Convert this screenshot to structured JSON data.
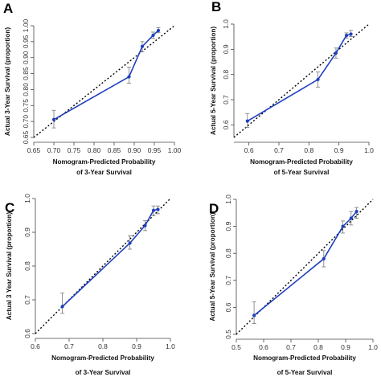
{
  "chart_data": [
    {
      "panel": "A",
      "type": "line",
      "xlabel": [
        "Nomogram-Predicted Probability",
        "of 3-Year Survival"
      ],
      "ylabel": "Actual 3-Year Survival  (proportion)",
      "xlim": [
        0.65,
        1.0
      ],
      "ylim": [
        0.65,
        1.0
      ],
      "xticks": [
        "0.65",
        "0.70",
        "0.75",
        "0.80",
        "0.85",
        "0.90",
        "0.95",
        "1.00"
      ],
      "yticks": [
        "0.65",
        "0.70",
        "0.75",
        "0.80",
        "0.85",
        "0.90",
        "0.95",
        "1.00"
      ],
      "x": [
        0.7,
        0.887,
        0.92,
        0.947,
        0.96
      ],
      "y": [
        0.706,
        0.84,
        0.935,
        0.97,
        0.985
      ],
      "err_low": [
        0.68,
        0.82,
        0.918,
        0.96,
        0.978
      ],
      "err_high": [
        0.735,
        0.87,
        0.95,
        0.98,
        0.994
      ],
      "line_color": "#1f3fbf",
      "diag_color": "#000000"
    },
    {
      "panel": "B",
      "type": "line",
      "xlabel": [
        "Nomogram-Predicted Probability",
        "of 5-Year Survival"
      ],
      "ylabel": "Actual 5-Year Survival  (proportion)",
      "xlim": [
        0.55,
        1.0
      ],
      "ylim": [
        0.55,
        1.0
      ],
      "xticks": [
        "0.6",
        "0.7",
        "0.8",
        "0.9",
        "1.0"
      ],
      "yticks": [
        "0.6",
        "0.7",
        "0.8",
        "0.9",
        "1.0"
      ],
      "x": [
        0.595,
        0.83,
        0.89,
        0.925,
        0.94
      ],
      "y": [
        0.615,
        0.78,
        0.885,
        0.955,
        0.96
      ],
      "err_low": [
        0.59,
        0.75,
        0.865,
        0.945,
        0.95
      ],
      "err_high": [
        0.645,
        0.81,
        0.905,
        0.965,
        0.975
      ],
      "line_color": "#1f3fbf",
      "diag_color": "#000000"
    },
    {
      "panel": "C",
      "type": "line",
      "xlabel": [
        "Nomogram-Predicted Probability",
        "of 3-Year Survival"
      ],
      "ylabel": "Actual 3 Year Survival  (proportion)",
      "xlim": [
        0.6,
        1.0
      ],
      "ylim": [
        0.6,
        1.0
      ],
      "xticks": [
        "0.6",
        "0.7",
        "0.8",
        "0.9",
        "1.0"
      ],
      "yticks": [
        "0.6",
        "0.7",
        "0.8",
        "0.9",
        "1.0"
      ],
      "x": [
        0.68,
        0.88,
        0.925,
        0.95,
        0.963
      ],
      "y": [
        0.68,
        0.868,
        0.92,
        0.965,
        0.968
      ],
      "err_low": [
        0.66,
        0.85,
        0.905,
        0.95,
        0.955
      ],
      "err_high": [
        0.72,
        0.89,
        0.935,
        0.978,
        0.978
      ],
      "line_color": "#1f3fbf",
      "diag_color": "#000000"
    },
    {
      "panel": "D",
      "type": "line",
      "xlabel": [
        "Nomogram-Predicted Probability",
        "of 5-Year Survival"
      ],
      "ylabel": "Actual 5-Year Survival  (proportion)",
      "xlim": [
        0.5,
        1.0
      ],
      "ylim": [
        0.5,
        1.0
      ],
      "xticks": [
        "0.5",
        "0.6",
        "0.7",
        "0.8",
        "0.9",
        "1.0"
      ],
      "yticks": [
        "0.5",
        "0.6",
        "0.7",
        "0.8",
        "0.9",
        "1.0"
      ],
      "x": [
        0.565,
        0.82,
        0.89,
        0.92,
        0.94
      ],
      "y": [
        0.57,
        0.78,
        0.9,
        0.93,
        0.955
      ],
      "err_low": [
        0.54,
        0.75,
        0.875,
        0.905,
        0.93
      ],
      "err_high": [
        0.62,
        0.81,
        0.92,
        0.955,
        0.97
      ],
      "line_color": "#1f3fbf",
      "diag_color": "#000000"
    }
  ]
}
